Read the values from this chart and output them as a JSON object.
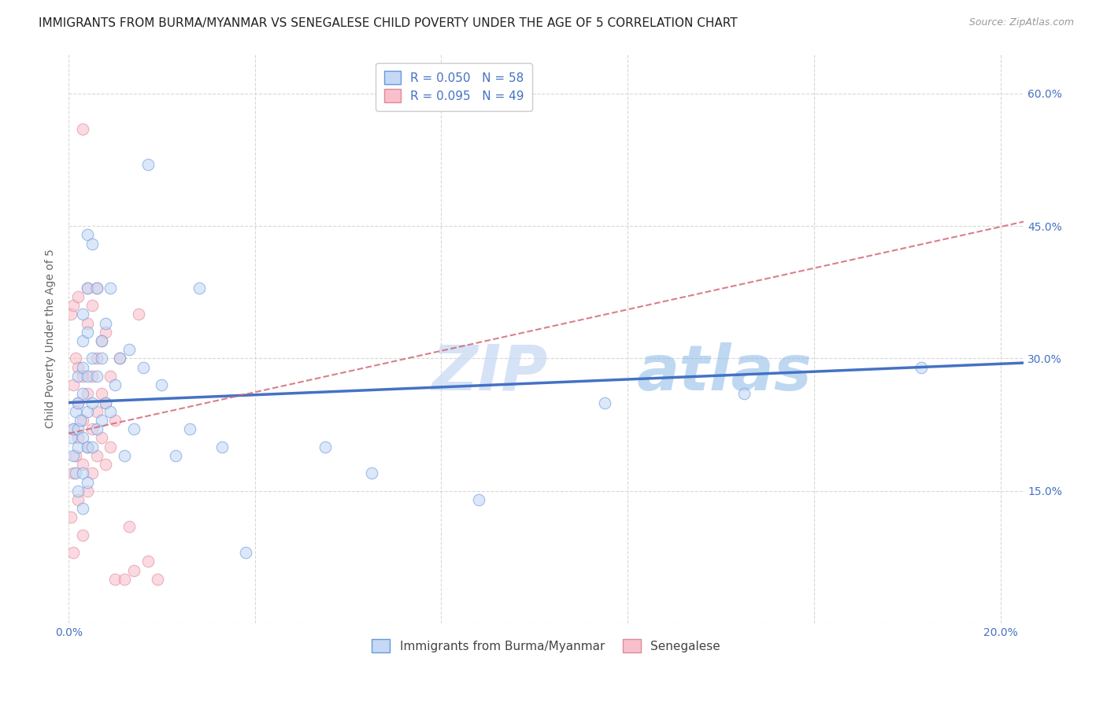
{
  "title": "IMMIGRANTS FROM BURMA/MYANMAR VS SENEGALESE CHILD POVERTY UNDER THE AGE OF 5 CORRELATION CHART",
  "source": "Source: ZipAtlas.com",
  "ylabel": "Child Poverty Under the Age of 5",
  "xlim": [
    0.0,
    0.205
  ],
  "ylim": [
    0.0,
    0.645
  ],
  "legend_blue_R": "R = 0.050",
  "legend_blue_N": "N = 58",
  "legend_pink_R": "R = 0.095",
  "legend_pink_N": "N = 49",
  "legend_label_blue": "Immigrants from Burma/Myanmar",
  "legend_label_pink": "Senegalese",
  "blue_fill_color": "#c5d8f5",
  "pink_fill_color": "#f9c0cc",
  "blue_edge_color": "#6699dd",
  "pink_edge_color": "#e08898",
  "blue_line_color": "#4472C4",
  "pink_line_color": "#d06070",
  "watermark_color": "#c8daf5",
  "watermark": "ZIPatlas",
  "blue_scatter_x": [
    0.0005,
    0.001,
    0.001,
    0.0015,
    0.0015,
    0.002,
    0.002,
    0.002,
    0.002,
    0.002,
    0.0025,
    0.003,
    0.003,
    0.003,
    0.003,
    0.003,
    0.003,
    0.003,
    0.004,
    0.004,
    0.004,
    0.004,
    0.004,
    0.004,
    0.004,
    0.005,
    0.005,
    0.005,
    0.005,
    0.006,
    0.006,
    0.006,
    0.007,
    0.007,
    0.007,
    0.008,
    0.008,
    0.009,
    0.009,
    0.01,
    0.011,
    0.012,
    0.013,
    0.014,
    0.016,
    0.017,
    0.02,
    0.023,
    0.026,
    0.028,
    0.033,
    0.038,
    0.055,
    0.065,
    0.088,
    0.115,
    0.145,
    0.183
  ],
  "blue_scatter_y": [
    0.21,
    0.19,
    0.22,
    0.17,
    0.24,
    0.15,
    0.2,
    0.22,
    0.25,
    0.28,
    0.23,
    0.13,
    0.17,
    0.21,
    0.26,
    0.29,
    0.32,
    0.35,
    0.16,
    0.2,
    0.24,
    0.28,
    0.33,
    0.38,
    0.44,
    0.2,
    0.25,
    0.3,
    0.43,
    0.22,
    0.28,
    0.38,
    0.23,
    0.3,
    0.32,
    0.25,
    0.34,
    0.24,
    0.38,
    0.27,
    0.3,
    0.19,
    0.31,
    0.22,
    0.29,
    0.52,
    0.27,
    0.19,
    0.22,
    0.38,
    0.2,
    0.08,
    0.2,
    0.17,
    0.14,
    0.25,
    0.26,
    0.29
  ],
  "pink_scatter_x": [
    0.0005,
    0.0005,
    0.001,
    0.001,
    0.001,
    0.001,
    0.001,
    0.0015,
    0.0015,
    0.002,
    0.002,
    0.002,
    0.002,
    0.002,
    0.003,
    0.003,
    0.003,
    0.003,
    0.003,
    0.004,
    0.004,
    0.004,
    0.004,
    0.004,
    0.005,
    0.005,
    0.005,
    0.005,
    0.006,
    0.006,
    0.006,
    0.006,
    0.007,
    0.007,
    0.007,
    0.008,
    0.008,
    0.008,
    0.009,
    0.009,
    0.01,
    0.01,
    0.011,
    0.012,
    0.013,
    0.014,
    0.015,
    0.017,
    0.019
  ],
  "pink_scatter_y": [
    0.12,
    0.35,
    0.08,
    0.17,
    0.22,
    0.27,
    0.36,
    0.19,
    0.3,
    0.14,
    0.21,
    0.25,
    0.29,
    0.37,
    0.1,
    0.18,
    0.23,
    0.28,
    0.56,
    0.15,
    0.2,
    0.26,
    0.34,
    0.38,
    0.17,
    0.22,
    0.28,
    0.36,
    0.19,
    0.24,
    0.3,
    0.38,
    0.21,
    0.26,
    0.32,
    0.18,
    0.25,
    0.33,
    0.2,
    0.28,
    0.05,
    0.23,
    0.3,
    0.05,
    0.11,
    0.06,
    0.35,
    0.07,
    0.05
  ],
  "blue_trend_x": [
    0.0,
    0.205
  ],
  "blue_trend_y": [
    0.25,
    0.295
  ],
  "pink_trend_x": [
    0.0,
    0.205
  ],
  "pink_trend_y": [
    0.215,
    0.455
  ],
  "grid_color": "#d8d8d8",
  "bg_color": "#ffffff",
  "title_fontsize": 11,
  "source_fontsize": 9,
  "axis_label_fontsize": 10,
  "tick_fontsize": 10,
  "legend_fontsize": 11,
  "scatter_size": 110,
  "scatter_alpha": 0.6,
  "scatter_linewidths": 0.8,
  "x_ticks": [
    0.0,
    0.04,
    0.08,
    0.12,
    0.16,
    0.2
  ],
  "y_ticks": [
    0.0,
    0.15,
    0.3,
    0.45,
    0.6
  ]
}
